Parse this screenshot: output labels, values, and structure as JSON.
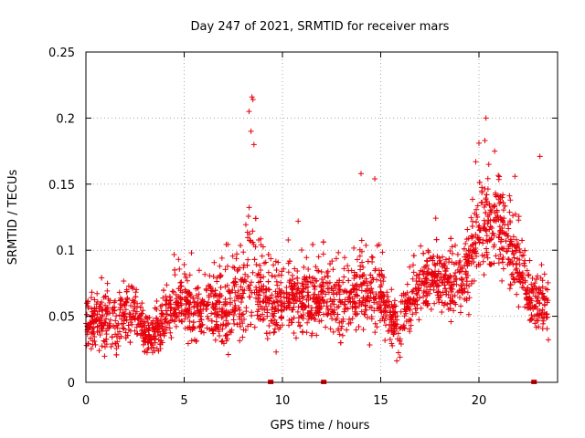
{
  "chart_data": {
    "type": "scatter",
    "title": "Day 247 of 2021, SRMTID for receiver mars",
    "xlabel": "GPS time / hours",
    "ylabel": "SRMTID / TECUs",
    "xlim": [
      0,
      24
    ],
    "ylim": [
      0,
      0.25
    ],
    "xticks": [
      0,
      5,
      10,
      15,
      20
    ],
    "xtick_labels": [
      "0",
      "5",
      "10",
      "15",
      "20"
    ],
    "yticks": [
      0,
      0.05,
      0.1,
      0.15,
      0.2,
      0.25
    ],
    "ytick_labels": [
      "0",
      "0.05",
      "0.1",
      "0.15",
      "0.2",
      "0.25"
    ],
    "grid": true,
    "marker_color": "#e8000b",
    "marker": "plus",
    "profile_x": [
      0,
      0.5,
      1,
      1.5,
      2,
      2.5,
      3,
      3.5,
      4,
      4.5,
      5,
      5.5,
      6,
      6.5,
      7,
      7.5,
      8,
      8.3,
      8.6,
      9,
      9.5,
      10,
      10.5,
      11,
      11.5,
      12,
      12.5,
      13,
      13.5,
      14,
      14.5,
      15,
      15.5,
      16,
      16.5,
      17,
      17.5,
      18,
      18.5,
      19,
      19.5,
      20,
      20.5,
      21,
      21.5,
      22,
      22.5,
      23,
      23.5
    ],
    "profile_median": [
      0.045,
      0.045,
      0.045,
      0.045,
      0.05,
      0.055,
      0.035,
      0.035,
      0.05,
      0.055,
      0.06,
      0.05,
      0.06,
      0.06,
      0.05,
      0.06,
      0.06,
      0.09,
      0.085,
      0.065,
      0.06,
      0.06,
      0.065,
      0.06,
      0.06,
      0.065,
      0.065,
      0.06,
      0.06,
      0.07,
      0.07,
      0.065,
      0.05,
      0.045,
      0.06,
      0.075,
      0.08,
      0.075,
      0.075,
      0.07,
      0.09,
      0.11,
      0.12,
      0.12,
      0.1,
      0.09,
      0.065,
      0.06,
      0.06
    ],
    "profile_spread": [
      0.015,
      0.018,
      0.018,
      0.018,
      0.02,
      0.02,
      0.015,
      0.015,
      0.018,
      0.02,
      0.02,
      0.018,
      0.022,
      0.022,
      0.025,
      0.025,
      0.03,
      0.05,
      0.04,
      0.025,
      0.022,
      0.02,
      0.022,
      0.02,
      0.02,
      0.022,
      0.022,
      0.022,
      0.022,
      0.025,
      0.025,
      0.025,
      0.02,
      0.02,
      0.022,
      0.022,
      0.02,
      0.02,
      0.02,
      0.02,
      0.025,
      0.03,
      0.03,
      0.03,
      0.025,
      0.025,
      0.02,
      0.02,
      0.02
    ],
    "peaks": [
      {
        "x": 8.45,
        "y": 0.216
      },
      {
        "x": 8.5,
        "y": 0.214
      },
      {
        "x": 8.4,
        "y": 0.19
      },
      {
        "x": 8.55,
        "y": 0.18
      },
      {
        "x": 20.3,
        "y": 0.183
      },
      {
        "x": 20.0,
        "y": 0.181
      },
      {
        "x": 20.8,
        "y": 0.175
      },
      {
        "x": 20.5,
        "y": 0.165
      },
      {
        "x": 23.1,
        "y": 0.171
      },
      {
        "x": 14.0,
        "y": 0.158
      },
      {
        "x": 14.7,
        "y": 0.154
      },
      {
        "x": 8.3,
        "y": 0.205
      },
      {
        "x": 10.8,
        "y": 0.122
      }
    ],
    "baseline_markers_x": [
      9.4,
      12.1,
      22.8
    ]
  }
}
